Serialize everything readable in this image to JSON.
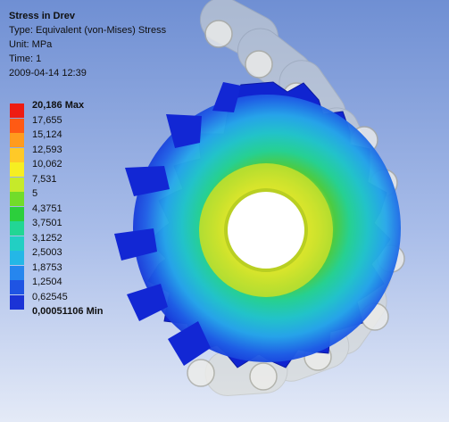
{
  "info": {
    "title": "Stress in Drev",
    "type": "Type: Equivalent (von-Mises) Stress",
    "unit": "Unit: MPa",
    "time": "Time: 1",
    "date": "2009-04-14 12:39"
  },
  "legend": [
    {
      "label": "20,186 Max",
      "color": "#ee1c12",
      "bold": true
    },
    {
      "label": "17,655",
      "color": "#ff5a14"
    },
    {
      "label": "15,124",
      "color": "#ff9b1e"
    },
    {
      "label": "12,593",
      "color": "#ffc928"
    },
    {
      "label": "10,062",
      "color": "#f6ee22"
    },
    {
      "label": "7,531",
      "color": "#c6ea2a"
    },
    {
      "label": "5",
      "color": "#72dc2a"
    },
    {
      "label": "4,3751",
      "color": "#2ccf3c"
    },
    {
      "label": "3,7501",
      "color": "#22d694"
    },
    {
      "label": "3,1252",
      "color": "#22cfc3"
    },
    {
      "label": "2,5003",
      "color": "#24b7e6"
    },
    {
      "label": "1,8753",
      "color": "#2686ee"
    },
    {
      "label": "1,2504",
      "color": "#1f54e3"
    },
    {
      "label": "0,62545",
      "color": "#1b33d6"
    },
    {
      "label": "0,00051106 Min",
      "color": "#1018c8",
      "bold": true
    }
  ]
}
